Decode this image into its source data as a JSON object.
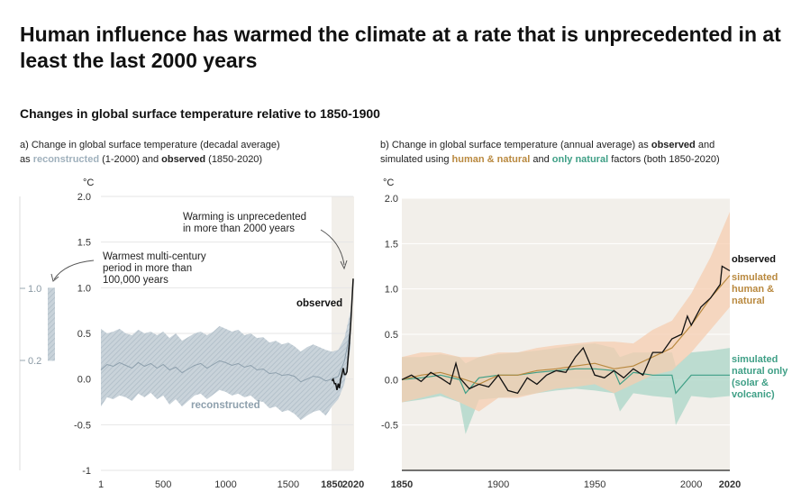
{
  "title": "Human influence has warmed the climate at a rate that is unprecedented in at least the last 2000 years",
  "subtitle": "Changes in global surface temperature relative to 1850-1900",
  "panel_a": {
    "caption": {
      "prefix": "a) Change in global surface temperature (decadal average)",
      "as": "as",
      "reconstructed": "reconstructed",
      "mid": "(1-2000) and",
      "observed": "observed",
      "suffix": "(1850-2020)"
    },
    "unit": "°C",
    "annotation_warming": [
      "Warming is unprecedented",
      "in more than 2000 years"
    ],
    "annotation_warmest": [
      "Warmest multi-century",
      "period in more than",
      "100,000 years"
    ],
    "warm_bar_top": "1.0",
    "warm_bar_bottom": "0.2",
    "label_observed": "observed",
    "label_reconstructed": "reconstructed"
  },
  "panel_b": {
    "caption": {
      "prefix": "b) Change in global surface temperature (annual average) as",
      "observed": "observed",
      "and": "and",
      "line2a": "simulated using",
      "human": "human & natural",
      "and2": "and",
      "natural": "only natural",
      "line2b": "factors (both 1850-2020)"
    },
    "unit": "°C",
    "label_observed": "observed",
    "label_human": [
      "simulated",
      "human &",
      "natural"
    ],
    "label_natural": [
      "simulated",
      "natural only",
      "(solar &",
      "volcanic)"
    ]
  },
  "colors": {
    "reconstructed": "#9fb0bc",
    "reconstructed_band": "#c9d3da",
    "observed": "#111111",
    "human": "#b9893f",
    "human_band": "#f6cdb0",
    "natural": "#3f9f86",
    "natural_band": "#a9d5c7",
    "panel_b_bg": "#f2efea",
    "recent_bg": "#f2efea"
  },
  "chart_data": [
    {
      "type": "line",
      "title": "a) Change in global surface temperature (decadal average)",
      "ylabel": "°C",
      "xlim": [
        1,
        2020
      ],
      "ylim": [
        -1,
        2.0
      ],
      "xticks": [
        "1",
        "500",
        "1000",
        "1500",
        "1850",
        "2020"
      ],
      "yticks": [
        "-1",
        "-0.5",
        "0.0",
        "0.5",
        "1.0",
        "1.5",
        "2.0"
      ],
      "highlight_range": [
        1850,
        2020
      ],
      "series": [
        {
          "name": "reconstructed",
          "x": [
            1,
            50,
            100,
            150,
            200,
            250,
            300,
            350,
            400,
            450,
            500,
            550,
            600,
            650,
            700,
            750,
            800,
            850,
            900,
            950,
            1000,
            1050,
            1100,
            1150,
            1200,
            1250,
            1300,
            1350,
            1400,
            1450,
            1500,
            1550,
            1600,
            1650,
            1700,
            1750,
            1800,
            1850,
            1900,
            1950,
            2000
          ],
          "y": [
            0.1,
            0.16,
            0.14,
            0.18,
            0.15,
            0.12,
            0.18,
            0.14,
            0.17,
            0.12,
            0.16,
            0.1,
            0.13,
            0.07,
            0.11,
            0.15,
            0.17,
            0.12,
            0.16,
            0.2,
            0.18,
            0.15,
            0.17,
            0.13,
            0.15,
            0.1,
            0.11,
            0.06,
            0.07,
            0.04,
            0.05,
            0.03,
            -0.03,
            0.0,
            0.03,
            0.02,
            -0.02,
            0.0,
            0.03,
            0.2,
            0.55
          ],
          "low": [
            -0.3,
            -0.2,
            -0.22,
            -0.18,
            -0.2,
            -0.24,
            -0.16,
            -0.2,
            -0.15,
            -0.22,
            -0.18,
            -0.28,
            -0.22,
            -0.3,
            -0.24,
            -0.18,
            -0.16,
            -0.22,
            -0.17,
            -0.12,
            -0.14,
            -0.18,
            -0.16,
            -0.2,
            -0.18,
            -0.24,
            -0.25,
            -0.32,
            -0.3,
            -0.36,
            -0.34,
            -0.38,
            -0.45,
            -0.4,
            -0.36,
            -0.34,
            -0.4,
            -0.3,
            -0.22,
            -0.05,
            0.35
          ],
          "high": [
            0.55,
            0.5,
            0.52,
            0.55,
            0.5,
            0.48,
            0.54,
            0.5,
            0.52,
            0.48,
            0.52,
            0.45,
            0.5,
            0.42,
            0.46,
            0.5,
            0.52,
            0.48,
            0.52,
            0.58,
            0.55,
            0.52,
            0.54,
            0.48,
            0.5,
            0.45,
            0.46,
            0.4,
            0.42,
            0.38,
            0.4,
            0.36,
            0.3,
            0.35,
            0.38,
            0.35,
            0.32,
            0.3,
            0.32,
            0.45,
            0.75
          ]
        },
        {
          "name": "observed",
          "x": [
            1850,
            1860,
            1870,
            1880,
            1890,
            1900,
            1910,
            1920,
            1930,
            1940,
            1950,
            1960,
            1970,
            1980,
            1990,
            2000,
            2010,
            2020
          ],
          "y": [
            -0.02,
            0.0,
            -0.05,
            -0.05,
            -0.12,
            -0.05,
            -0.1,
            0.0,
            0.05,
            0.12,
            0.05,
            0.05,
            0.08,
            0.25,
            0.4,
            0.6,
            0.85,
            1.1
          ]
        }
      ],
      "annotations": [
        "Warming is unprecedented in more than 2000 years",
        "Warmest multi-century period in more than 100,000 years"
      ],
      "warm_period_bar": [
        0.2,
        1.0
      ]
    },
    {
      "type": "line",
      "title": "b) Change in global surface temperature (annual average)",
      "ylabel": "°C",
      "xlim": [
        1850,
        2020
      ],
      "ylim": [
        -1,
        2.0
      ],
      "xticks": [
        "1850",
        "1900",
        "1950",
        "2000",
        "2020"
      ],
      "yticks": [
        "-0.5",
        "0.0",
        "0.5",
        "1.0",
        "1.5",
        "2.0"
      ],
      "series": [
        {
          "name": "observed",
          "x": [
            1850,
            1855,
            1860,
            1865,
            1870,
            1875,
            1878,
            1880,
            1885,
            1890,
            1895,
            1900,
            1905,
            1910,
            1915,
            1920,
            1925,
            1930,
            1935,
            1940,
            1944,
            1950,
            1955,
            1960,
            1965,
            1970,
            1975,
            1980,
            1985,
            1990,
            1995,
            1998,
            2000,
            2005,
            2010,
            2015,
            2016,
            2020
          ],
          "y": [
            0.0,
            0.05,
            -0.02,
            0.08,
            0.02,
            -0.05,
            0.18,
            0.02,
            -0.1,
            -0.05,
            -0.08,
            0.05,
            -0.12,
            -0.15,
            0.02,
            -0.05,
            0.05,
            0.1,
            0.08,
            0.25,
            0.35,
            0.05,
            0.02,
            0.1,
            0.02,
            0.12,
            0.05,
            0.3,
            0.3,
            0.45,
            0.5,
            0.7,
            0.6,
            0.8,
            0.9,
            1.05,
            1.25,
            1.2
          ]
        },
        {
          "name": "simulated human & natural",
          "x": [
            1850,
            1860,
            1870,
            1880,
            1890,
            1900,
            1910,
            1920,
            1930,
            1940,
            1950,
            1960,
            1970,
            1980,
            1990,
            2000,
            2010,
            2020
          ],
          "y": [
            0.0,
            0.05,
            0.08,
            0.02,
            -0.05,
            0.05,
            0.05,
            0.1,
            0.12,
            0.15,
            0.18,
            0.12,
            0.15,
            0.25,
            0.35,
            0.6,
            0.9,
            1.15
          ],
          "low": [
            -0.25,
            -0.2,
            -0.15,
            -0.25,
            -0.35,
            -0.2,
            -0.2,
            -0.15,
            -0.1,
            -0.08,
            -0.05,
            -0.15,
            -0.05,
            0.05,
            0.1,
            0.3,
            0.55,
            0.8
          ],
          "high": [
            0.25,
            0.3,
            0.3,
            0.25,
            0.25,
            0.3,
            0.3,
            0.35,
            0.38,
            0.4,
            0.42,
            0.42,
            0.4,
            0.55,
            0.65,
            0.95,
            1.35,
            1.85
          ]
        },
        {
          "name": "simulated natural only (solar & volcanic)",
          "x": [
            1850,
            1860,
            1870,
            1880,
            1883,
            1890,
            1900,
            1910,
            1920,
            1930,
            1940,
            1950,
            1960,
            1963,
            1970,
            1980,
            1990,
            1992,
            2000,
            2010,
            2020
          ],
          "y": [
            0.0,
            0.02,
            0.05,
            0.0,
            -0.15,
            0.02,
            0.05,
            0.05,
            0.08,
            0.1,
            0.12,
            0.12,
            0.1,
            -0.05,
            0.08,
            0.05,
            0.05,
            -0.15,
            0.05,
            0.05,
            0.05
          ],
          "low": [
            -0.25,
            -0.22,
            -0.18,
            -0.25,
            -0.6,
            -0.22,
            -0.2,
            -0.18,
            -0.15,
            -0.12,
            -0.1,
            -0.12,
            -0.15,
            -0.35,
            -0.15,
            -0.18,
            -0.2,
            -0.5,
            -0.18,
            -0.2,
            -0.18
          ],
          "high": [
            0.25,
            0.25,
            0.28,
            0.25,
            0.18,
            0.25,
            0.28,
            0.3,
            0.32,
            0.35,
            0.38,
            0.4,
            0.35,
            0.25,
            0.3,
            0.3,
            0.3,
            0.15,
            0.3,
            0.32,
            0.35
          ]
        }
      ]
    }
  ]
}
